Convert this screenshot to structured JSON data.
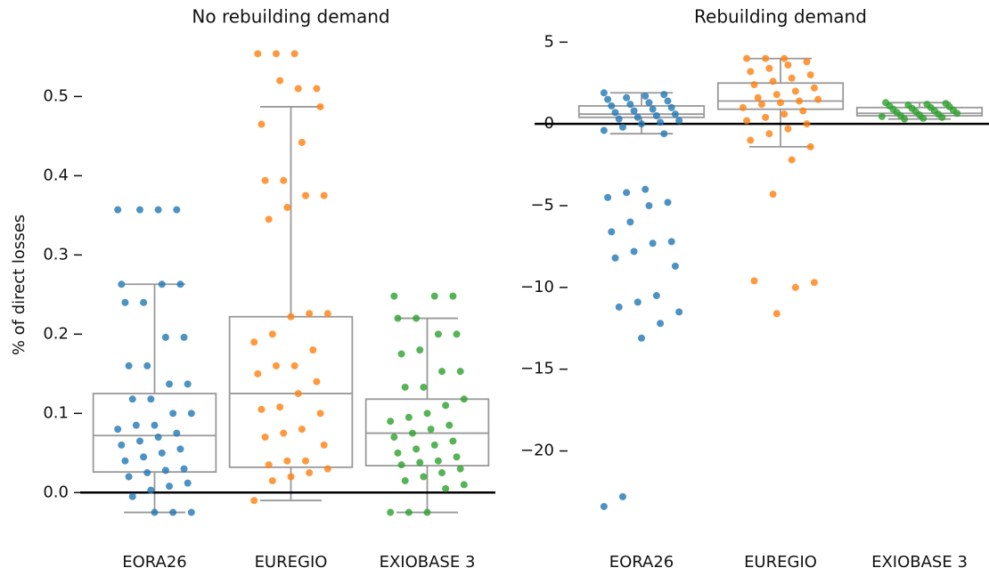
{
  "chart_data": [
    {
      "type": "box",
      "title": "No rebuilding demand",
      "ylabel": "% of direct losses",
      "categories": [
        "EORA26",
        "EUREGIO",
        "EXIOBASE 3"
      ],
      "colors": [
        "#1f77b4",
        "#ff7f0e",
        "#2ca02c"
      ],
      "boxes": [
        [
          -0.025,
          0.026,
          0.072,
          0.125,
          0.263
        ],
        [
          -0.01,
          0.032,
          0.125,
          0.222,
          0.487
        ],
        [
          -0.025,
          0.034,
          0.075,
          0.118,
          0.22
        ]
      ],
      "points": [
        [
          0.357,
          0.357,
          0.357,
          0.357,
          0.263,
          0.263,
          0.263,
          0.24,
          0.24,
          0.196,
          0.196,
          0.16,
          0.16,
          0.137,
          0.137,
          0.118,
          0.118,
          0.1,
          0.1,
          0.085,
          0.085,
          0.08,
          0.075,
          0.07,
          0.065,
          0.06,
          0.055,
          0.05,
          0.045,
          0.04,
          0.03,
          0.028,
          0.025,
          0.02,
          0.012,
          0.008,
          0.003,
          -0.005,
          -0.025,
          -0.025,
          -0.025
        ],
        [
          0.554,
          0.554,
          0.554,
          0.51,
          0.51,
          0.52,
          0.465,
          0.487,
          0.442,
          0.394,
          0.394,
          0.375,
          0.375,
          0.36,
          0.345,
          0.226,
          0.226,
          0.222,
          0.2,
          0.19,
          0.18,
          0.16,
          0.16,
          0.15,
          0.14,
          0.125,
          0.108,
          0.105,
          0.1,
          0.08,
          0.075,
          0.07,
          0.06,
          0.04,
          0.04,
          0.035,
          0.03,
          0.025,
          0.02,
          0.015,
          -0.01
        ],
        [
          0.248,
          0.248,
          0.248,
          0.22,
          0.22,
          0.2,
          0.2,
          0.18,
          0.175,
          0.153,
          0.153,
          0.133,
          0.133,
          0.118,
          0.11,
          0.1,
          0.095,
          0.09,
          0.085,
          0.08,
          0.075,
          0.07,
          0.065,
          0.06,
          0.055,
          0.05,
          0.045,
          0.04,
          0.038,
          0.035,
          0.03,
          0.025,
          0.02,
          0.015,
          0.01,
          0.005,
          -0.025,
          -0.025,
          -0.025
        ]
      ],
      "hline": 0,
      "ylim": [
        -0.03,
        0.56
      ],
      "yticks": [
        {
          "value": 0,
          "label": "0.0"
        },
        0.1,
        0.2,
        0.3,
        0.4,
        0.5
      ]
    },
    {
      "type": "box",
      "title": "Rebuilding demand",
      "categories": [
        "EORA26",
        "EUREGIO",
        "EXIOBASE 3"
      ],
      "colors": [
        "#1f77b4",
        "#ff7f0e",
        "#2ca02c"
      ],
      "boxes": [
        [
          -0.6,
          0.4,
          0.6,
          1.1,
          1.9
        ],
        [
          -1.4,
          0.9,
          1.4,
          2.5,
          4.0
        ],
        [
          0.3,
          0.5,
          0.65,
          1.0,
          1.3
        ]
      ],
      "points": [
        [
          1.9,
          1.8,
          1.7,
          1.6,
          1.5,
          1.4,
          1.3,
          1.2,
          1.1,
          1.0,
          0.9,
          0.8,
          0.7,
          0.6,
          0.5,
          0.4,
          0.3,
          0.2,
          0.1,
          0,
          -0.2,
          -0.4,
          -0.6,
          -4.0,
          -4.2,
          -4.5,
          -4.8,
          -5.0,
          -6.0,
          -6.6,
          -7.2,
          -7.3,
          -7.8,
          -8.2,
          -8.7,
          -10.5,
          -10.9,
          -11.2,
          -11.5,
          -12.2,
          -13.1,
          -22.8,
          -23.4
        ],
        [
          4.0,
          4.0,
          4.0,
          3.8,
          3.6,
          3.4,
          3.2,
          3.0,
          2.8,
          2.6,
          2.4,
          2.2,
          2.0,
          1.8,
          1.6,
          1.5,
          1.4,
          1.3,
          1.2,
          1.0,
          0.8,
          0.6,
          0.4,
          0.2,
          0,
          -0.3,
          -0.6,
          -1.0,
          -1.4,
          -2.2,
          -4.3,
          -9.6,
          -9.7,
          -10.0,
          -11.6
        ],
        [
          1.3,
          1.25,
          1.2,
          1.15,
          1.1,
          1.05,
          1.0,
          0.95,
          0.9,
          0.85,
          0.8,
          0.75,
          0.7,
          0.65,
          0.6,
          0.55,
          0.5,
          0.45,
          0.4,
          0.35,
          0.3
        ]
      ],
      "hline": 0,
      "ylim": [
        -24,
        5.4
      ],
      "yticks": [
        5,
        0,
        {
          "value": -5,
          "label": "−5"
        },
        {
          "value": -10,
          "label": "−10"
        },
        {
          "value": -15,
          "label": "−15"
        },
        {
          "value": -20,
          "label": "−20"
        }
      ]
    }
  ]
}
